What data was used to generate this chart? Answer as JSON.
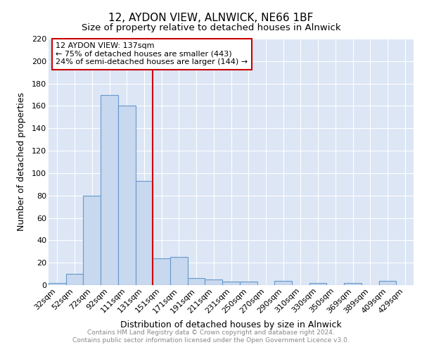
{
  "title": "12, AYDON VIEW, ALNWICK, NE66 1BF",
  "subtitle": "Size of property relative to detached houses in Alnwick",
  "xlabel": "Distribution of detached houses by size in Alnwick",
  "ylabel": "Number of detached properties",
  "categories": [
    "32sqm",
    "52sqm",
    "72sqm",
    "92sqm",
    "111sqm",
    "131sqm",
    "151sqm",
    "171sqm",
    "191sqm",
    "211sqm",
    "231sqm",
    "250sqm",
    "270sqm",
    "290sqm",
    "310sqm",
    "330sqm",
    "350sqm",
    "369sqm",
    "389sqm",
    "409sqm",
    "429sqm"
  ],
  "values": [
    2,
    10,
    80,
    170,
    160,
    93,
    24,
    25,
    6,
    5,
    3,
    3,
    0,
    4,
    0,
    2,
    0,
    2,
    0,
    4,
    0
  ],
  "bar_color": "#c8d8ee",
  "bar_edge_color": "#6699cc",
  "vline_x_index": 5,
  "vline_color": "#cc0000",
  "annotation_line1": "12 AYDON VIEW: 137sqm",
  "annotation_line2": "← 75% of detached houses are smaller (443)",
  "annotation_line3": "24% of semi-detached houses are larger (144) →",
  "annotation_box_color": "#cc0000",
  "ylim": [
    0,
    220
  ],
  "yticks": [
    0,
    20,
    40,
    60,
    80,
    100,
    120,
    140,
    160,
    180,
    200,
    220
  ],
  "background_color": "#dce6f5",
  "grid_color": "#ffffff",
  "footer_line1": "Contains HM Land Registry data © Crown copyright and database right 2024.",
  "footer_line2": "Contains public sector information licensed under the Open Government Licence v3.0.",
  "title_fontsize": 11,
  "subtitle_fontsize": 9.5,
  "xlabel_fontsize": 9,
  "ylabel_fontsize": 9,
  "tick_fontsize": 8,
  "annotation_fontsize": 8,
  "footer_fontsize": 6.5
}
